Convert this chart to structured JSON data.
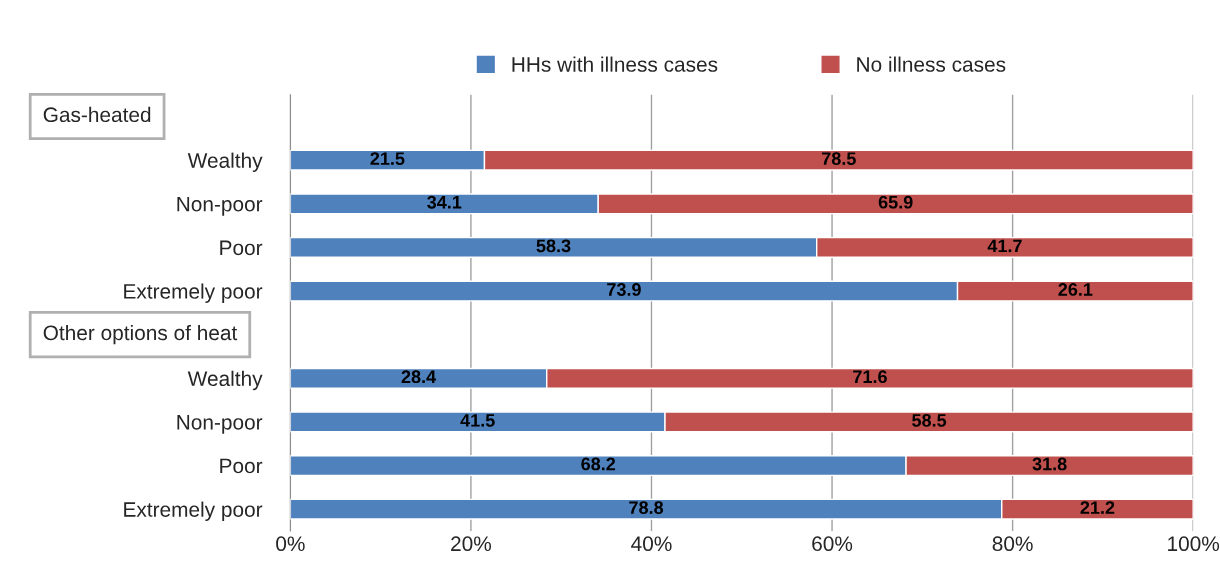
{
  "chart_data": {
    "type": "bar",
    "orientation": "horizontal",
    "stacked": true,
    "categories": [
      null,
      "Wealthy",
      "Non-poor",
      "Poor",
      "Extremely poor",
      null,
      "Wealthy",
      "Non-poor",
      "Poor",
      "Extremely poor"
    ],
    "series": [
      {
        "name": "HHs with illness cases",
        "color": "#4f81bd",
        "values": [
          null,
          21.5,
          34.1,
          58.3,
          73.9,
          null,
          28.4,
          41.5,
          68.2,
          78.8
        ]
      },
      {
        "name": "No illness cases",
        "color": "#c0504d",
        "values": [
          null,
          78.5,
          65.9,
          41.7,
          26.1,
          null,
          71.6,
          58.5,
          31.8,
          21.2
        ]
      }
    ],
    "annotations": [
      "Gas-heated",
      "Other options of heat"
    ],
    "xlim": [
      0,
      100
    ],
    "xticks": [
      {
        "value": 0,
        "label": "0%"
      },
      {
        "value": 20,
        "label": "20%"
      },
      {
        "value": 40,
        "label": "40%"
      },
      {
        "value": 60,
        "label": "60%"
      },
      {
        "value": 80,
        "label": "80%"
      },
      {
        "value": 100,
        "label": "100%"
      }
    ],
    "grid": "x",
    "legend": "top",
    "data_labels": true
  }
}
